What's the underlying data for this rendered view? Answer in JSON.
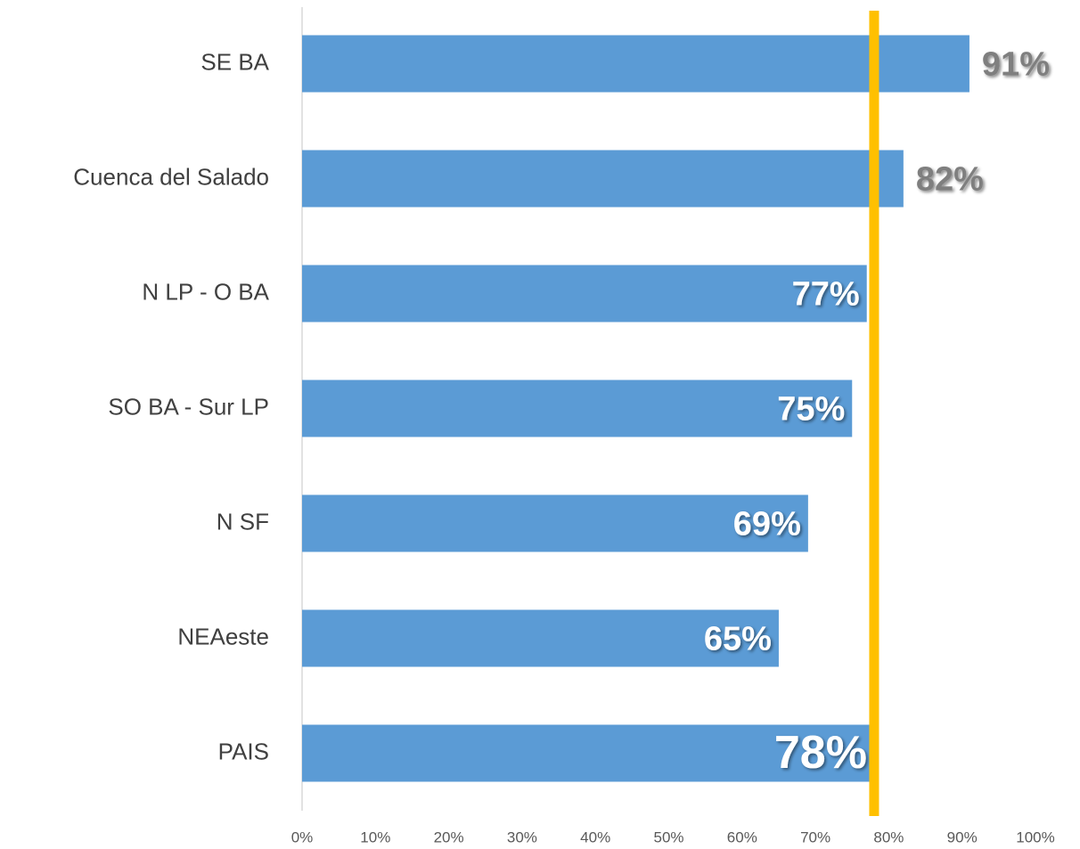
{
  "chart_data": {
    "type": "hbar",
    "categories": [
      "SE BA",
      "Cuenca del Salado",
      "N LP - O BA",
      "SO BA - Sur LP",
      "N SF",
      "NEAeste",
      "PAIS"
    ],
    "values": [
      91,
      82,
      77,
      75,
      69,
      65,
      78
    ],
    "value_labels": [
      "91%",
      "82%",
      "77%",
      "75%",
      "69%",
      "65%",
      "78%"
    ],
    "color": "#5b9bd5",
    "xlim": [
      0,
      100
    ],
    "xticks": [
      {
        "value": 0,
        "label": "0%"
      },
      {
        "value": 10,
        "label": "10%"
      },
      {
        "value": 20,
        "label": "20%"
      },
      {
        "value": 30,
        "label": "30%"
      },
      {
        "value": 40,
        "label": "40%"
      },
      {
        "value": 50,
        "label": "50%"
      },
      {
        "value": 60,
        "label": "60%"
      },
      {
        "value": 70,
        "label": "70%"
      },
      {
        "value": 80,
        "label": "80%"
      },
      {
        "value": 90,
        "label": "90%"
      },
      {
        "value": 100,
        "label": "100%"
      }
    ],
    "reference_value": 78,
    "reference_color": "#ffc000",
    "highlight_index": 6,
    "grid": false
  }
}
